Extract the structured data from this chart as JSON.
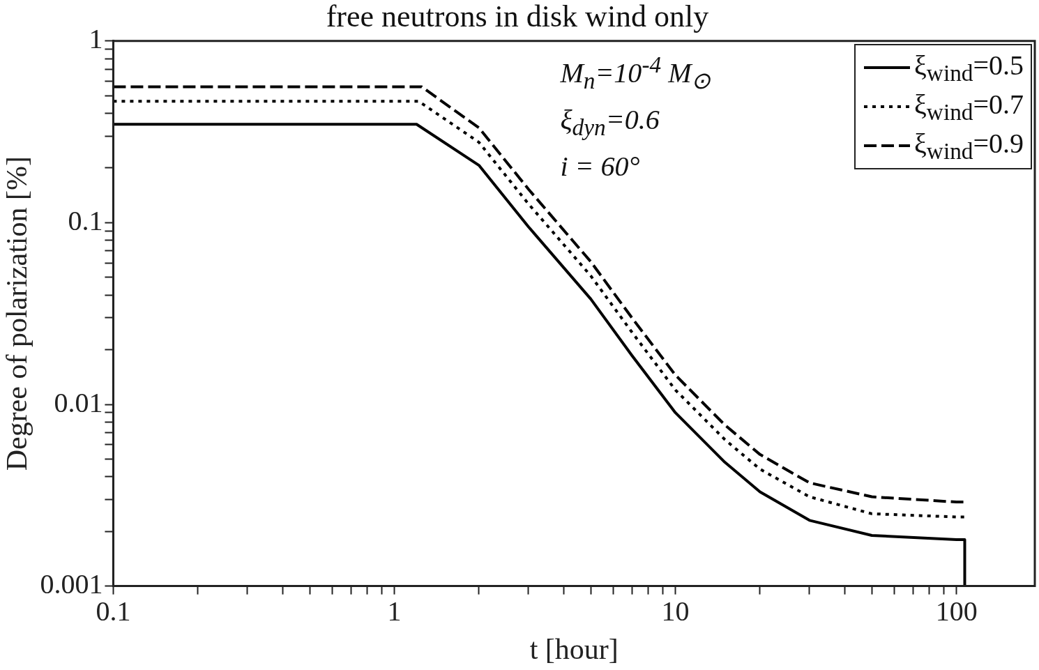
{
  "chart_data": {
    "type": "line",
    "title": "free neutrons in disk wind only",
    "xlabel": "t [hour]",
    "ylabel": "Degree of polarization [%]",
    "log": "xy",
    "grid": false,
    "legend": "top right",
    "marker": "none",
    "xlim": [
      0.1,
      190
    ],
    "ylim": [
      0.001,
      1
    ],
    "xticks": [
      0.1,
      {
        "value": 0.2,
        "label": null
      },
      {
        "value": 0.3,
        "label": null
      },
      {
        "value": 0.4,
        "label": null
      },
      {
        "value": 0.5,
        "label": null
      },
      {
        "value": 0.6,
        "label": null
      },
      {
        "value": 0.7,
        "label": null
      },
      {
        "value": 0.8,
        "label": null
      },
      {
        "value": 0.9,
        "label": null
      },
      1,
      {
        "value": 2,
        "label": null
      },
      {
        "value": 3,
        "label": null
      },
      {
        "value": 4,
        "label": null
      },
      {
        "value": 5,
        "label": null
      },
      {
        "value": 6,
        "label": null
      },
      {
        "value": 7,
        "label": null
      },
      {
        "value": 8,
        "label": null
      },
      {
        "value": 9,
        "label": null
      },
      10,
      {
        "value": 20,
        "label": null
      },
      {
        "value": 30,
        "label": null
      },
      {
        "value": 40,
        "label": null
      },
      {
        "value": 50,
        "label": null
      },
      {
        "value": 60,
        "label": null
      },
      {
        "value": 70,
        "label": null
      },
      {
        "value": 80,
        "label": null
      },
      {
        "value": 90,
        "label": null
      },
      100
    ],
    "yticks": [
      0.001,
      {
        "value": 0.002,
        "label": null
      },
      {
        "value": 0.003,
        "label": null
      },
      {
        "value": 0.004,
        "label": null
      },
      {
        "value": 0.005,
        "label": null
      },
      {
        "value": 0.006,
        "label": null
      },
      {
        "value": 0.007,
        "label": null
      },
      {
        "value": 0.008,
        "label": null
      },
      {
        "value": 0.009,
        "label": null
      },
      0.01,
      {
        "value": 0.02,
        "label": null
      },
      {
        "value": 0.03,
        "label": null
      },
      {
        "value": 0.04,
        "label": null
      },
      {
        "value": 0.05,
        "label": null
      },
      {
        "value": 0.06,
        "label": null
      },
      {
        "value": 0.07,
        "label": null
      },
      {
        "value": 0.08,
        "label": null
      },
      {
        "value": 0.09,
        "label": null
      },
      0.1,
      {
        "value": 0.2,
        "label": null
      },
      {
        "value": 0.3,
        "label": null
      },
      {
        "value": 0.4,
        "label": null
      },
      {
        "value": 0.5,
        "label": null
      },
      {
        "value": 0.6,
        "label": null
      },
      {
        "value": 0.7,
        "label": null
      },
      {
        "value": 0.8,
        "label": null
      },
      {
        "value": 0.9,
        "label": null
      },
      1
    ],
    "annotations": [
      "M$_{n}$=10$^{-4}$  M$_{⊙}$",
      "ξ$_{dyn}$=0.6",
      "i = 60°"
    ],
    "series": [
      {
        "name": "ξ$_{wind}$=0.5",
        "color": "#000000",
        "line_style": "solid",
        "x": [
          0.1,
          1.2,
          2,
          3,
          5,
          7,
          10,
          15,
          20,
          30,
          50,
          100,
          107,
          107
        ],
        "values": [
          0.348,
          0.348,
          0.207,
          0.095,
          0.038,
          0.0186,
          0.009,
          0.0048,
          0.0033,
          0.0023,
          0.0019,
          0.0018,
          0.0018,
          0.001
        ]
      },
      {
        "name": "ξ$_{wind}$=0.7",
        "color": "#000000",
        "line_style": "dotted",
        "x": [
          0.1,
          1.22,
          2,
          3,
          5,
          7,
          10,
          15,
          20,
          30,
          50,
          100,
          107
        ],
        "values": [
          0.466,
          0.466,
          0.277,
          0.127,
          0.051,
          0.025,
          0.012,
          0.0064,
          0.0044,
          0.0031,
          0.0025,
          0.0024,
          0.0024
        ]
      },
      {
        "name": "ξ$_{wind}$=0.9",
        "color": "#000000",
        "line_style": "dashed",
        "x": [
          0.1,
          1.25,
          2,
          3,
          5,
          7,
          10,
          15,
          20,
          30,
          50,
          100,
          107
        ],
        "values": [
          0.56,
          0.56,
          0.333,
          0.153,
          0.061,
          0.03,
          0.0145,
          0.0077,
          0.0053,
          0.0037,
          0.0031,
          0.0029,
          0.0029
        ]
      }
    ]
  }
}
